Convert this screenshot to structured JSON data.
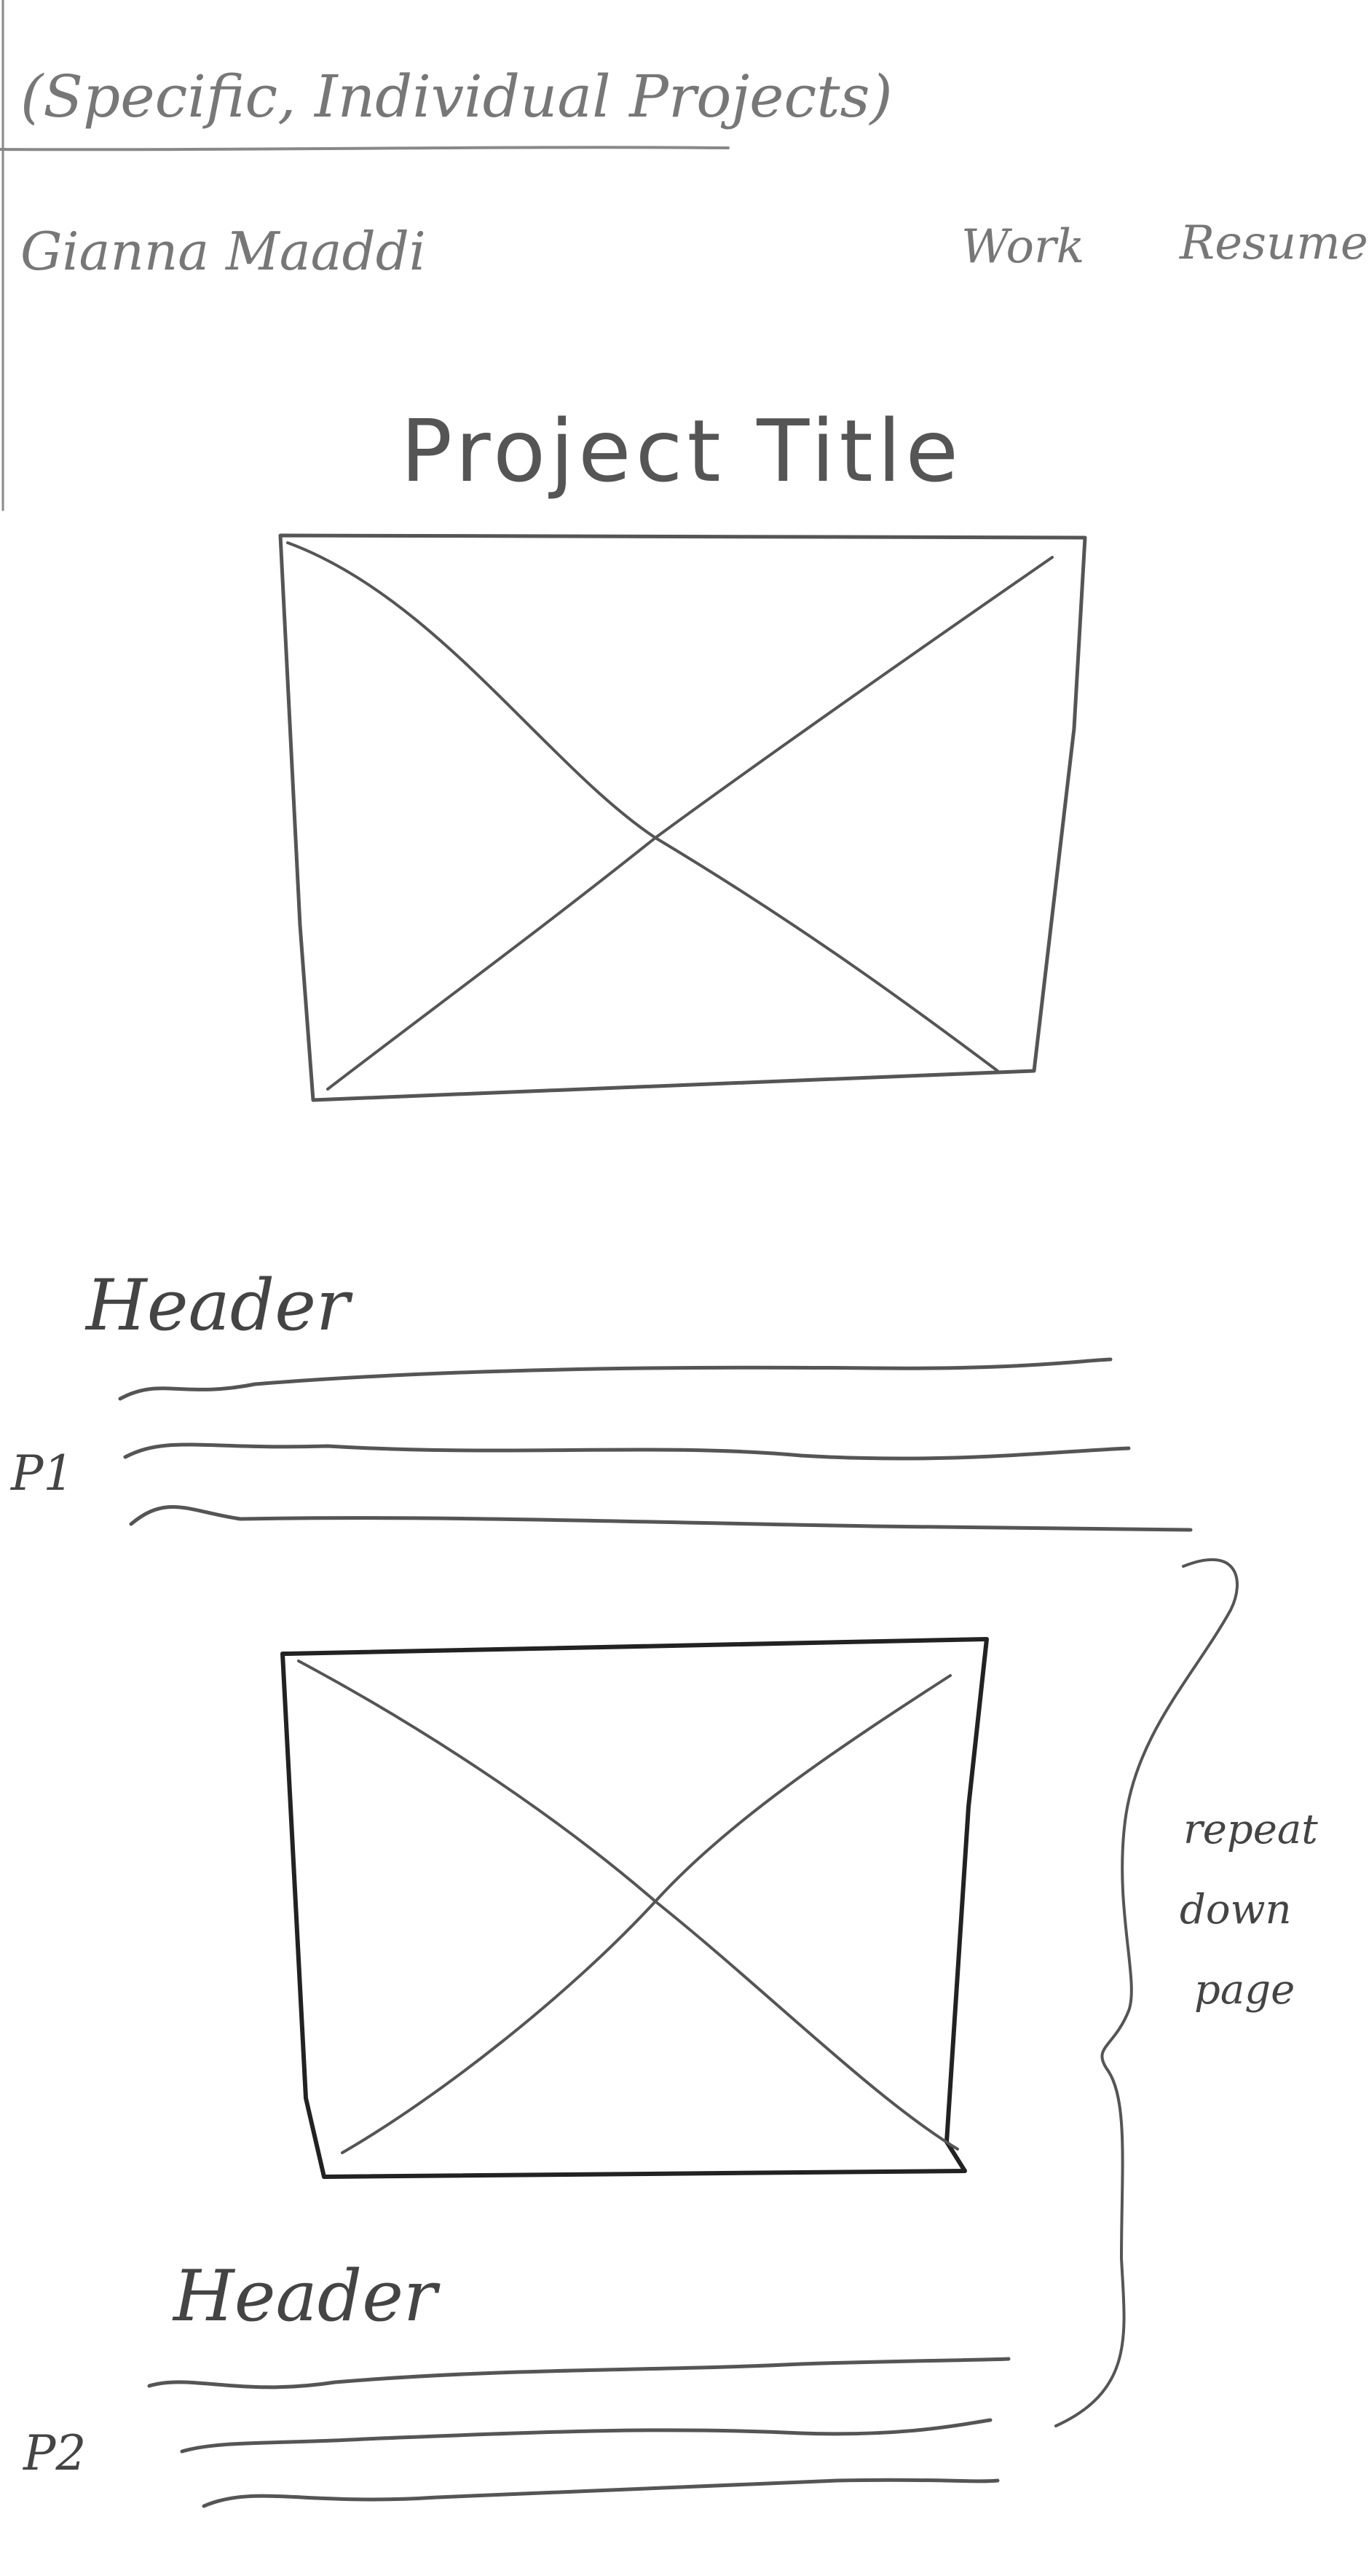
{
  "page_label": "(Specific, Individual Projects)",
  "author_name": "Gianna Maaddi",
  "nav": {
    "items": [
      "Work",
      "Resume"
    ]
  },
  "project_title": "Project Title",
  "sections": [
    {
      "header": "Header",
      "paragraph_label": "P1"
    },
    {
      "header": "Header",
      "paragraph_label": "P2"
    }
  ],
  "annotation": {
    "lines": [
      "repeat",
      "down",
      "page"
    ]
  }
}
